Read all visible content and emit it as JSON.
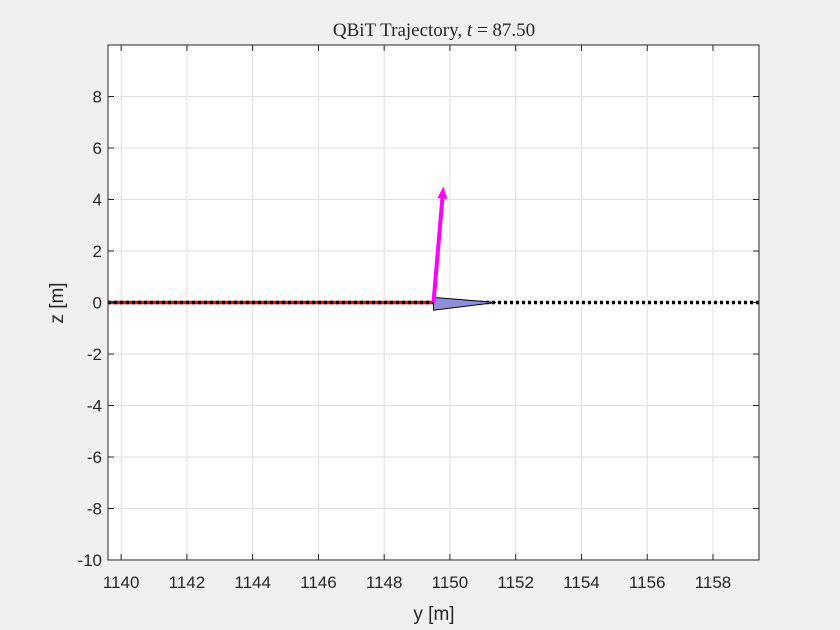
{
  "chart_data": {
    "type": "line",
    "title": "QBiT Trajectory, t = 87.50",
    "title_parts": {
      "prefix": "QBiT Trajectory, ",
      "var": "t",
      "equals": " = ",
      "value": "87.50"
    },
    "xlabel": "y [m]",
    "ylabel": "z [m]",
    "xlim": [
      1139.6,
      1159.4
    ],
    "ylim": [
      -10,
      10
    ],
    "xticks": [
      1140,
      1142,
      1144,
      1146,
      1148,
      1150,
      1152,
      1154,
      1156,
      1158
    ],
    "yticks": [
      -10,
      -8,
      -6,
      -4,
      -2,
      0,
      2,
      4,
      6,
      8
    ],
    "grid": true,
    "series": [
      {
        "role": "traveled-path",
        "style": "solid",
        "color": "#ff0000",
        "x": [
          1139.6,
          1149.5
        ],
        "y": [
          0,
          0
        ]
      },
      {
        "role": "reference-path",
        "style": "dotted",
        "color": "#000000",
        "x": [
          1139.6,
          1159.4
        ],
        "y": [
          0,
          0
        ]
      }
    ],
    "vehicle": {
      "color": "#8f8fdc",
      "outline": "#000000",
      "x": [
        1149.5,
        1151.4,
        1149.5
      ],
      "y": [
        0.2,
        0,
        -0.3
      ]
    },
    "arrow": {
      "color": "#ff00ff",
      "from": [
        1149.5,
        0
      ],
      "to": [
        1149.8,
        4.5
      ]
    }
  }
}
